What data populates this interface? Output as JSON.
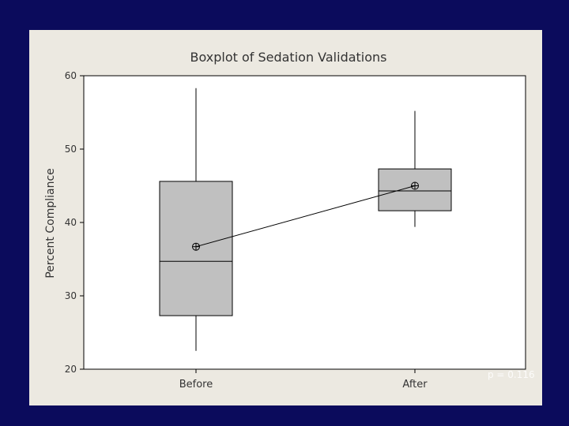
{
  "chart_data": {
    "type": "boxplot",
    "title": "Boxplot of Sedation Validations",
    "xlabel": "",
    "ylabel": "Percent Compliance",
    "ylim": [
      20,
      60
    ],
    "yticks": [
      20,
      30,
      40,
      50,
      60
    ],
    "grid": false,
    "categories": [
      "Before",
      "After"
    ],
    "boxes": [
      {
        "name": "Before",
        "whisker_low": 22.5,
        "q1": 27.3,
        "median": 34.7,
        "q3": 45.6,
        "whisker_high": 58.3,
        "mean": 36.7
      },
      {
        "name": "After",
        "whisker_low": 39.4,
        "q1": 41.6,
        "median": 44.3,
        "q3": 47.3,
        "whisker_high": 55.2,
        "mean": 45.0
      }
    ],
    "mean_line": true,
    "annotation": "p = 0.116"
  },
  "colors": {
    "page_background": "#0b0b5c",
    "figure_background": "#ece9e1",
    "plot_background": "#ffffff",
    "box_fill": "#c0c0c0",
    "stroke": "#000000",
    "annotation": "#ffffff"
  }
}
